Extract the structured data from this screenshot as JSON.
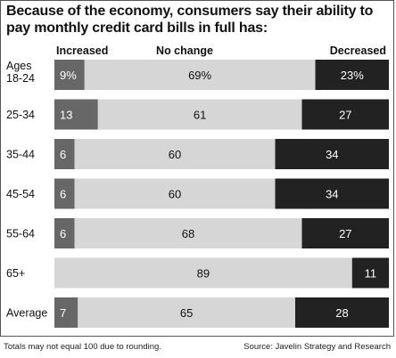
{
  "chart_data": {
    "type": "bar",
    "stacked": true,
    "orientation": "horizontal",
    "title": "Because of the economy, consumers say their ability to pay monthly credit card bills in full has:",
    "categories": [
      "Ages 18-24",
      "25-34",
      "35-44",
      "45-54",
      "55-64",
      "65+",
      "Average"
    ],
    "series": [
      {
        "name": "Increased",
        "values": [
          9,
          13,
          6,
          6,
          6,
          0,
          7
        ],
        "labels": [
          "9%",
          "13",
          "6",
          "6",
          "6",
          "",
          "7"
        ],
        "color": "#676767"
      },
      {
        "name": "No change",
        "values": [
          69,
          61,
          60,
          60,
          68,
          89,
          65
        ],
        "labels": [
          "69%",
          "61",
          "60",
          "60",
          "68",
          "89",
          "65"
        ],
        "color": "#d6d6d6"
      },
      {
        "name": "Decreased",
        "values": [
          23,
          27,
          34,
          34,
          27,
          11,
          28
        ],
        "labels": [
          "23%",
          "27",
          "34",
          "34",
          "27",
          "11",
          "28"
        ],
        "color": "#222222"
      }
    ],
    "xlim": [
      0,
      100
    ],
    "grid": false,
    "legend": "top",
    "footnote": "Totals may not equal 100 due to rounding.",
    "source": "Source: Javelin Strategy and Research"
  }
}
